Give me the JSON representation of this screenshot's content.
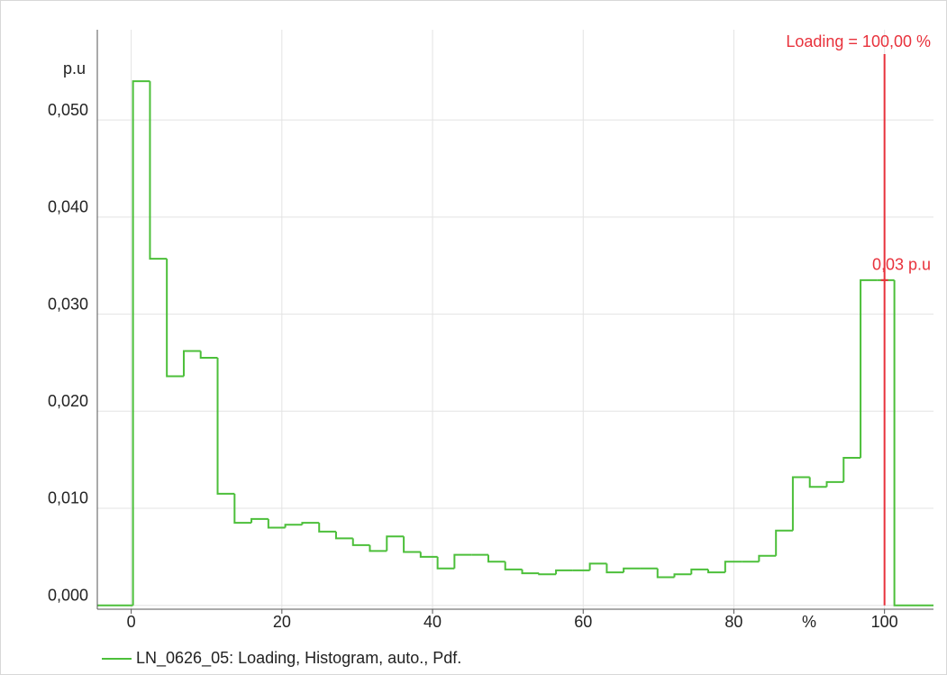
{
  "chart_data": {
    "type": "histogram",
    "x_unit": "%",
    "y_unit": "p.u",
    "bins": [
      0.24,
      2.49,
      4.73,
      6.98,
      9.22,
      11.47,
      13.72,
      15.96,
      18.21,
      20.45,
      22.7,
      24.95,
      27.19,
      29.44,
      31.68,
      33.93,
      36.18,
      38.42,
      40.67,
      42.91,
      45.16,
      47.41,
      49.65,
      51.9,
      54.14,
      56.39,
      58.64,
      60.88,
      63.13,
      65.37,
      67.62,
      69.87,
      72.11,
      74.36,
      76.6,
      78.85,
      81.1,
      83.34,
      85.59,
      87.83,
      90.08,
      92.33,
      94.57,
      96.82,
      99.06,
      101.31
    ],
    "series": [
      {
        "name": "LN_0626_05: Loading, Histogram, auto., Pdf.",
        "color": "#4cbf3a",
        "values": [
          0.054,
          0.0357,
          0.0236,
          0.0262,
          0.0255,
          0.0115,
          0.0085,
          0.0089,
          0.008,
          0.0083,
          0.0085,
          0.0076,
          0.0069,
          0.0062,
          0.0056,
          0.0071,
          0.0055,
          0.005,
          0.0038,
          0.0052,
          0.0052,
          0.0045,
          0.0037,
          0.0033,
          0.0032,
          0.0036,
          0.0036,
          0.0043,
          0.0034,
          0.0038,
          0.0038,
          0.0029,
          0.0032,
          0.0037,
          0.0034,
          0.0045,
          0.0045,
          0.0051,
          0.0077,
          0.0132,
          0.0122,
          0.0127,
          0.0152,
          0.0335,
          0.0335
        ]
      }
    ],
    "marker": {
      "x": 100,
      "x_label": "Loading = 100,00 %",
      "y": 0.0335,
      "y_label": "0,03 p.u",
      "color": "#e8323c"
    },
    "xlim": [
      -4.5,
      106.5
    ],
    "ylim": [
      -0.0004,
      0.0593
    ],
    "xticks": [
      0,
      20,
      40,
      60,
      80,
      100
    ],
    "yticks": [
      {
        "value": 0,
        "label": "0,000"
      },
      {
        "value": 0.01,
        "label": "0,010"
      },
      {
        "value": 0.02,
        "label": "0,020"
      },
      {
        "value": 0.03,
        "label": "0,030"
      },
      {
        "value": 0.04,
        "label": "0,040"
      },
      {
        "value": 0.05,
        "label": "0,050"
      }
    ],
    "grid": true
  }
}
